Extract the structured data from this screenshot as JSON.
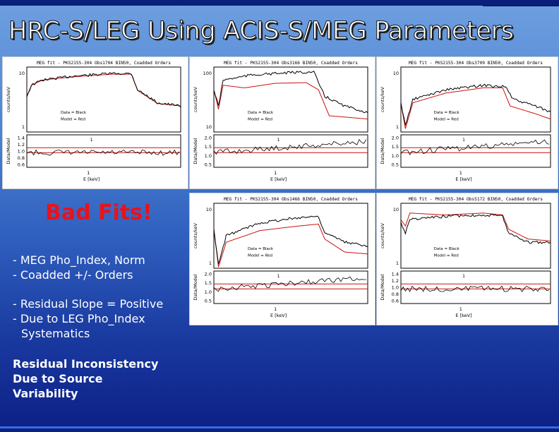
{
  "slide": {
    "title": "HRC-S/LEG Using ACIS-S/MEG Parameters",
    "bad_fits": "Bad Fits!",
    "bullets": [
      "- MEG Pho_Index, Norm",
      "- Coadded +/- Orders",
      "- Residual Slope = Positive",
      "- Due to LEG Pho_Index",
      "Systematics"
    ],
    "conclusion": [
      "Residual Inconsistency",
      "Due to Source",
      "Variability"
    ]
  },
  "colors": {
    "title_text": "#ffffff",
    "bad_fits": "#e8121c",
    "data_line": "#000000",
    "model_line": "#cc1111",
    "ref_line": "#cc1111"
  },
  "plot_labels": {
    "upper_ylabel": "counts/keV",
    "lower_ylabel": "Data/Model",
    "xlabel": "E [keV]",
    "x_tick": "1",
    "legend_data": "Data = Black",
    "legend_model": "Model = Red"
  },
  "chart_data": [
    {
      "type": "line",
      "title": "MEG fit - PKS2155-304 Obs1704 BIN50, Coadded Orders",
      "upper_yticks": [
        "10",
        "1"
      ],
      "lower_yticks": [
        "1.4",
        "1.2",
        "1.0",
        "0.8",
        "0.6"
      ],
      "ratio_label": "1"
    },
    {
      "type": "line",
      "title": "MEG fit - PKS2155-304 Obs3166 BIN50, Coadded Orders",
      "upper_yticks": [
        "100",
        "10"
      ],
      "lower_yticks": [
        "2.0",
        "1.5",
        "1.0",
        "0.5"
      ],
      "ratio_label": "1"
    },
    {
      "type": "line",
      "title": "MEG fit - PKS2155-304 Obs3709 BIN50, Coadded Orders",
      "upper_yticks": [
        "10",
        "1"
      ],
      "lower_yticks": [
        "2.0",
        "1.5",
        "1.0",
        "0.5"
      ],
      "ratio_label": "1"
    },
    {
      "type": "line",
      "title": "MEG fit - PKS2155-304 Obs1466 BIN50, Coadded Orders",
      "upper_yticks": [
        "10",
        "1"
      ],
      "lower_yticks": [
        "2.0",
        "1.5",
        "1.0",
        "0.5"
      ],
      "ratio_label": "1"
    },
    {
      "type": "line",
      "title": "MEG fit - PKS2155-304 Obs5172 BIN50, Coadded Orders",
      "upper_yticks": [
        "10",
        "1"
      ],
      "lower_yticks": [
        "1.4",
        "1.2",
        "1.0",
        "0.8",
        "0.6"
      ],
      "ratio_label": "1"
    }
  ]
}
